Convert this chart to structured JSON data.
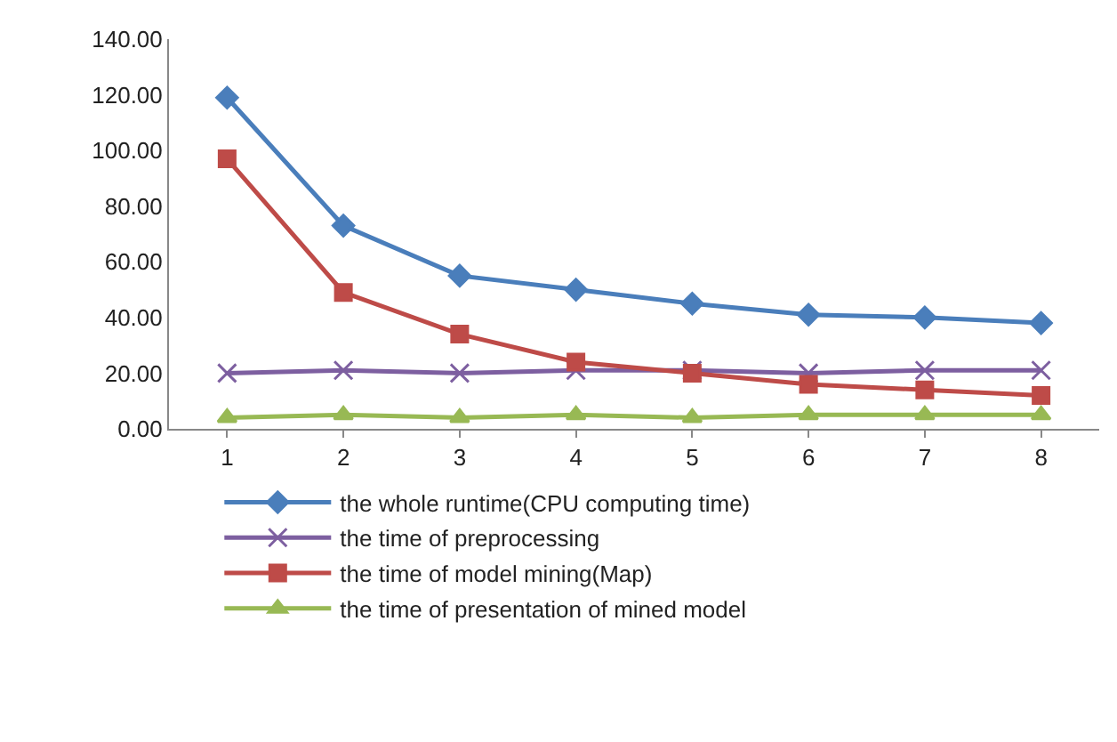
{
  "chart_data": {
    "type": "line",
    "categories": [
      "1",
      "2",
      "3",
      "4",
      "5",
      "6",
      "7",
      "8"
    ],
    "series": [
      {
        "name": "the whole runtime(CPU computing time)",
        "color": "#4a7ebb",
        "marker": "diamond",
        "values": [
          119,
          73,
          55,
          50,
          45,
          41,
          40,
          38
        ]
      },
      {
        "name": "the time of preprocessing",
        "color": "#7d5fa0",
        "marker": "cross",
        "values": [
          20,
          21,
          20,
          21,
          21,
          20,
          21,
          21
        ]
      },
      {
        "name": "the time of model mining(Map)",
        "color": "#be4b48",
        "marker": "square",
        "values": [
          97,
          49,
          34,
          24,
          20,
          16,
          14,
          12
        ]
      },
      {
        "name": "the time of presentation of mined model",
        "color": "#98b954",
        "marker": "triangle",
        "values": [
          4,
          5,
          4,
          5,
          4,
          5,
          5,
          5
        ]
      }
    ],
    "ylim": [
      0,
      140
    ],
    "yticks": [
      {
        "value": 0,
        "label": "0.00"
      },
      {
        "value": 20,
        "label": "20.00"
      },
      {
        "value": 40,
        "label": "40.00"
      },
      {
        "value": 60,
        "label": "60.00"
      },
      {
        "value": 80,
        "label": "80.00"
      },
      {
        "value": 100,
        "label": "100.00"
      },
      {
        "value": 120,
        "label": "120.00"
      },
      {
        "value": 140,
        "label": "140.00"
      }
    ],
    "grid": false,
    "legend": "bottom",
    "line_style": "solid"
  }
}
